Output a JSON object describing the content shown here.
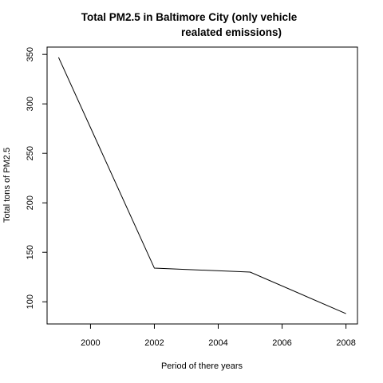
{
  "chart_data": {
    "type": "line",
    "title_lines": [
      "Total PM2.5 in Baltimore City (only vehicle",
      "realated emissions)"
    ],
    "xlabel": "Period of there years",
    "ylabel": "Total tons of PM2.5",
    "x": [
      1999,
      2002,
      2005,
      2008
    ],
    "y": [
      347,
      134,
      130,
      88
    ],
    "xlim": [
      1998.64,
      2008.36
    ],
    "ylim": [
      77.6,
      357.4
    ],
    "xticks": [
      2000,
      2002,
      2004,
      2006,
      2008
    ],
    "yticks": [
      100,
      150,
      200,
      250,
      300,
      350
    ],
    "grid": false,
    "legend": "none",
    "line_color": "#000000"
  }
}
